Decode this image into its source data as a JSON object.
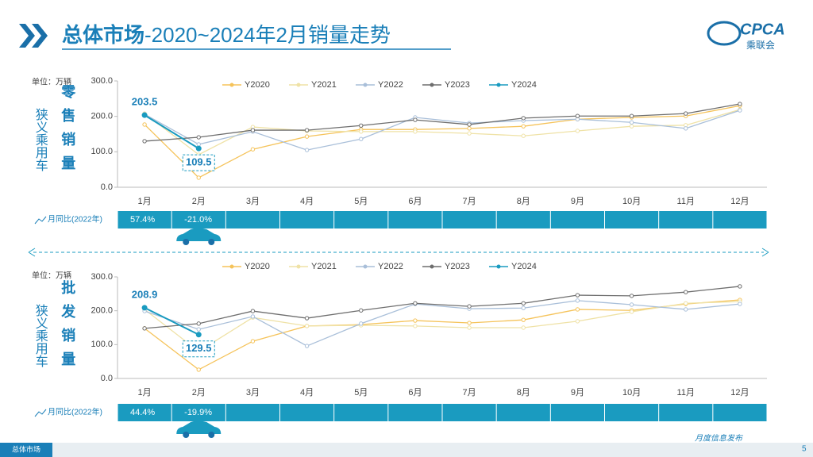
{
  "header": {
    "title_main": "总体市场",
    "title_sub": "-2020~2024年2月销量走势"
  },
  "logo": {
    "text": "CPCA",
    "subtitle": "乘联会"
  },
  "chart_data": [
    {
      "type": "line",
      "title": "零售销量",
      "side_label": "狭义乘用车",
      "unit_label": "单位：万辆",
      "categories": [
        "1月",
        "2月",
        "3月",
        "4月",
        "5月",
        "6月",
        "7月",
        "8月",
        "9月",
        "10月",
        "11月",
        "12月"
      ],
      "series": [
        {
          "name": "Y2020",
          "color": "#f5c35a",
          "values": [
            177,
            27,
            107,
            143,
            163,
            163,
            166,
            172,
            192,
            197,
            201,
            230
          ]
        },
        {
          "name": "Y2021",
          "color": "#efe2a6",
          "values": [
            208,
            92,
            170,
            159,
            157,
            157,
            152,
            145,
            159,
            172,
            175,
            219
          ]
        },
        {
          "name": "Y2022",
          "color": "#a9bfd9",
          "values": [
            206,
            121,
            157,
            105,
            136,
            197,
            181,
            188,
            192,
            183,
            166,
            217
          ]
        },
        {
          "name": "Y2023",
          "color": "#6e6e6e",
          "values": [
            130,
            141,
            161,
            161,
            174,
            190,
            177,
            195,
            201,
            201,
            208,
            235
          ]
        },
        {
          "name": "Y2024",
          "color": "#1a9bc0",
          "values": [
            203.5,
            109.5,
            null,
            null,
            null,
            null,
            null,
            null,
            null,
            null,
            null,
            null
          ]
        }
      ],
      "ylim": [
        0,
        300
      ],
      "yticks": [
        {
          "value": 0,
          "label": "0.0"
        },
        {
          "value": 100,
          "label": "100.0"
        },
        {
          "value": 200,
          "label": "200.0"
        },
        {
          "value": 300,
          "label": "300.0"
        }
      ],
      "yoy": {
        "label": "月同比(2022年)",
        "labels": [
          "57.4%",
          "-21.0%"
        ]
      }
    },
    {
      "type": "line",
      "title": "批发销量",
      "side_label": "狭义乘用车",
      "unit_label": "单位：万辆",
      "categories": [
        "1月",
        "2月",
        "3月",
        "4月",
        "5月",
        "6月",
        "7月",
        "8月",
        "9月",
        "10月",
        "11月",
        "12月"
      ],
      "series": [
        {
          "name": "Y2020",
          "color": "#f5c35a",
          "values": [
            148,
            26,
            110,
            155,
            159,
            171,
            164,
            173,
            204,
            201,
            220,
            232
          ]
        },
        {
          "name": "Y2021",
          "color": "#efe2a6",
          "values": [
            204,
            80,
            180,
            155,
            157,
            155,
            150,
            150,
            169,
            197,
            222,
            227
          ]
        },
        {
          "name": "Y2022",
          "color": "#a9bfd9",
          "values": [
            199,
            145,
            183,
            96,
            162,
            220,
            206,
            208,
            230,
            218,
            204,
            220
          ]
        },
        {
          "name": "Y2023",
          "color": "#6e6e6e",
          "values": [
            148,
            162,
            199,
            178,
            201,
            222,
            213,
            222,
            246,
            244,
            255,
            272
          ]
        },
        {
          "name": "Y2024",
          "color": "#1a9bc0",
          "values": [
            208.9,
            129.5,
            null,
            null,
            null,
            null,
            null,
            null,
            null,
            null,
            null,
            null
          ]
        }
      ],
      "ylim": [
        0,
        300
      ],
      "yticks": [
        {
          "value": 0,
          "label": "0.0"
        },
        {
          "value": 100,
          "label": "100.0"
        },
        {
          "value": 200,
          "label": "200.0"
        },
        {
          "value": 300,
          "label": "300.0"
        }
      ],
      "yoy": {
        "label": "月同比(2022年)",
        "labels": [
          "44.4%",
          "-19.9%"
        ]
      }
    }
  ],
  "footer": {
    "tab": "总体市场",
    "caption": "月度信息发布",
    "page": "5"
  }
}
